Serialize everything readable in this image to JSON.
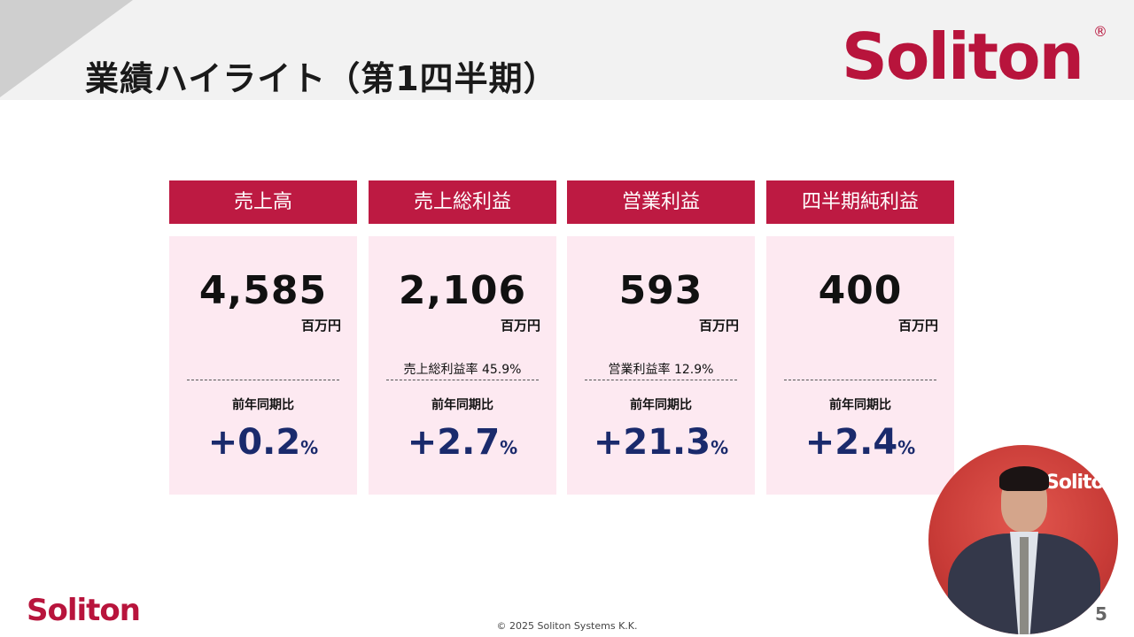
{
  "header": {
    "title": "業績ハイライト（第1四半期）",
    "logo_text": "Soliton",
    "logo_reg": "®"
  },
  "cards": [
    {
      "title": "売上高",
      "value": "4,585",
      "unit": "百万円",
      "sub": "",
      "yoy_label": "前年同期比",
      "yoy_value": "+0.2",
      "yoy_unit": "%"
    },
    {
      "title": "売上総利益",
      "value": "2,106",
      "unit": "百万円",
      "sub": "売上総利益率  45.9%",
      "yoy_label": "前年同期比",
      "yoy_value": "+2.7",
      "yoy_unit": "%"
    },
    {
      "title": "営業利益",
      "value": "593",
      "unit": "百万円",
      "sub": "営業利益率  12.9%",
      "yoy_label": "前年同期比",
      "yoy_value": "+21.3",
      "yoy_unit": "%"
    },
    {
      "title": "四半期純利益",
      "value": "400",
      "unit": "百万円",
      "sub": "",
      "yoy_label": "前年同期比",
      "yoy_value": "+2.4",
      "yoy_unit": "%"
    }
  ],
  "footer": {
    "logo_text": "Soliton",
    "copyright": "© 2025 Soliton Systems K.K.",
    "page_number": "5"
  },
  "video": {
    "wall_logo": "Solito",
    "wall_logo_left": "n"
  },
  "colors": {
    "brand_red": "#b8143c",
    "card_header": "#bd1a42",
    "card_body": "#fde9f1",
    "yoy_text": "#1a2a6c"
  }
}
